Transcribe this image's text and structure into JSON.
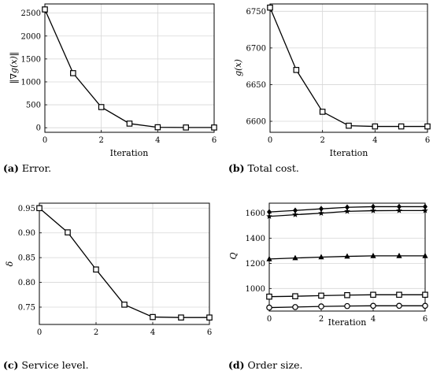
{
  "chart_data": [
    {
      "type": "line",
      "caption": {
        "tag": "(a)",
        "text": " Error."
      },
      "xlabel": "Iteration",
      "ylabel": "‖∇g(x)‖",
      "xlim": [
        0,
        6
      ],
      "ylim": [
        -100,
        2700
      ],
      "xticks": [
        0,
        2,
        4,
        6
      ],
      "yticks": [
        0,
        500,
        1000,
        1500,
        2000,
        2500
      ],
      "grid": true,
      "series": [
        {
          "marker": "square",
          "x": [
            0,
            1,
            2,
            3,
            4,
            5,
            6
          ],
          "values": [
            2580,
            1190,
            450,
            90,
            10,
            5,
            5
          ]
        }
      ]
    },
    {
      "type": "line",
      "caption": {
        "tag": "(b)",
        "text": " Total cost."
      },
      "xlabel": "Iteration",
      "ylabel": "g(x)",
      "xlim": [
        0,
        6
      ],
      "ylim": [
        6585,
        6760
      ],
      "xticks": [
        0,
        2,
        4,
        6
      ],
      "yticks": [
        6600,
        6650,
        6700,
        6750
      ],
      "grid": true,
      "series": [
        {
          "marker": "square",
          "x": [
            0,
            1,
            2,
            3,
            4,
            5,
            6
          ],
          "values": [
            6755,
            6670,
            6613,
            6594,
            6593,
            6593,
            6593
          ]
        }
      ]
    },
    {
      "type": "line",
      "caption": {
        "tag": "(c)",
        "text": " Service level."
      },
      "xlabel": "",
      "ylabel": "δ",
      "xlim": [
        0,
        6
      ],
      "ylim": [
        0.715,
        0.96
      ],
      "xticks": [
        0,
        2,
        4,
        6
      ],
      "yticks": [
        0.75,
        0.8,
        0.85,
        0.9,
        0.95
      ],
      "ytick_labels": [
        "0.75",
        "0.80",
        "0.85",
        "0.90",
        "0.95"
      ],
      "grid": true,
      "series": [
        {
          "marker": "square",
          "x": [
            0,
            1,
            2,
            3,
            4,
            5,
            6
          ],
          "values": [
            0.95,
            0.901,
            0.826,
            0.755,
            0.73,
            0.729,
            0.729
          ]
        }
      ]
    },
    {
      "type": "line",
      "caption": {
        "tag": "(d)",
        "text": " Order size."
      },
      "xlabel": "Iteration",
      "ylabel": "Q",
      "xlim": [
        0,
        6
      ],
      "ylim": [
        820,
        1680
      ],
      "xticks": [
        0,
        2,
        4,
        6
      ],
      "yticks": [
        1000,
        1200,
        1400,
        1600
      ],
      "grid": true,
      "series": [
        {
          "marker": "diamond",
          "x": [
            0,
            1,
            2,
            3,
            4,
            5,
            6
          ],
          "values": [
            1610,
            1622,
            1635,
            1647,
            1652,
            1652,
            1652
          ]
        },
        {
          "marker": "star",
          "x": [
            0,
            1,
            2,
            3,
            4,
            5,
            6
          ],
          "values": [
            1575,
            1588,
            1600,
            1615,
            1620,
            1621,
            1621
          ]
        },
        {
          "marker": "triangle",
          "x": [
            0,
            1,
            2,
            3,
            4,
            5,
            6
          ],
          "values": [
            1235,
            1243,
            1250,
            1256,
            1260,
            1260,
            1260
          ]
        },
        {
          "marker": "square",
          "x": [
            0,
            1,
            2,
            3,
            4,
            5,
            6
          ],
          "values": [
            935,
            938,
            943,
            947,
            950,
            950,
            950
          ]
        },
        {
          "marker": "circle",
          "x": [
            0,
            1,
            2,
            3,
            4,
            5,
            6
          ],
          "values": [
            848,
            852,
            857,
            860,
            862,
            862,
            862
          ]
        }
      ]
    }
  ]
}
